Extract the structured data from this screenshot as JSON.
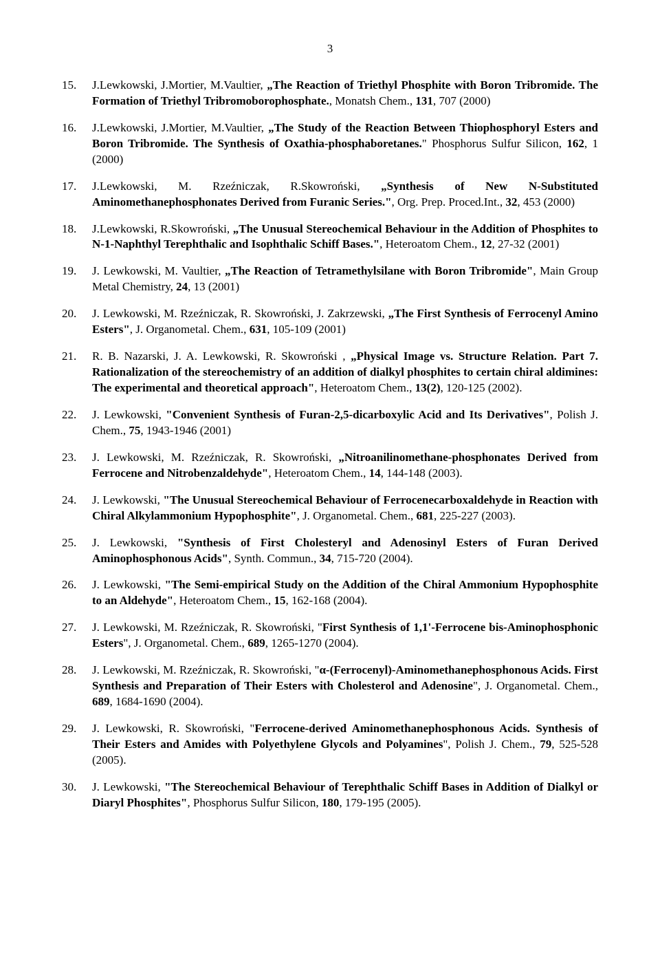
{
  "pageNumber": "3",
  "items": [
    {
      "n": "15.",
      "html": "J.Lewkowski, J.Mortier, M.Vaultier, <b>„The Reaction of Triethyl Phosphite with Boron Tribromide. The Formation of Triethyl Tribromoborophosphate.</b>, Monatsh Chem., <b>131</b>, 707 (2000)"
    },
    {
      "n": "16.",
      "html": "J.Lewkowski, J.Mortier, M.Vaultier, <b>„The Study of the Reaction Between Thiophosphoryl Esters and Boron Tribromide. The Synthesis of Oxathia-phosphaboretanes.</b>\" Phosphorus Sulfur Silicon, <b>162</b>, 1 (2000)"
    },
    {
      "n": "17.",
      "html": "J.Lewkowski, M. Rzeźniczak, R.Skowroński, <b>„Synthesis of New N-Substituted Aminomethanephosphonates Derived from Furanic Series.\"</b>, Org. Prep. Proced.Int., <b>32</b>, 453 (2000)"
    },
    {
      "n": "18.",
      "html": "J.Lewkowski, R.Skowroński, <b>„The Unusual Stereochemical Behaviour in the Addition of Phosphites to N-1-Naphthyl Terephthalic and Isophthalic Schiff Bases.\"</b>, Heteroatom Chem., <b>12</b>, 27-32 (2001)"
    },
    {
      "n": "19.",
      "html": "J. Lewkowski, M. Vaultier, <b>„The Reaction of Tetramethylsilane with Boron Tribromide\"</b>, Main Group Metal Chemistry, <b>24</b>, 13 (2001)"
    },
    {
      "n": "20.",
      "html": "J. Lewkowski, M. Rzeźniczak, R. Skowroński, J. Zakrzewski, <b>„The First Synthesis of Ferrocenyl Amino Esters\"</b>, J. Organometal. Chem., <b>631</b>, 105-109 (2001)"
    },
    {
      "n": "21.",
      "html": "R. B. Nazarski, J. A. Lewkowski, R. Skowroński , <b>„Physical Image vs. Structure Relation. Part 7. Rationalization of the stereochemistry of an addition of dialkyl phosphites to certain chiral aldimines: The experimental and theoretical approach\"</b>, Heteroatom Chem., <b>13(2)</b>, 120-125 (2002)."
    },
    {
      "n": "22.",
      "html": "J. Lewkowski, <b>\"Convenient Synthesis of Furan-2,5-dicarboxylic Acid and Its Derivatives\"</b>, Polish J. Chem., <b>75</b>, 1943-1946 (2001)"
    },
    {
      "n": "23.",
      "html": "J. Lewkowski, M. Rzeźniczak, R. Skowroński, <b>„Nitroanilinomethane-phosphonates Derived from Ferrocene and Nitrobenzaldehyde\"</b>, Heteroatom Chem., <b>14</b>, 144-148 (2003)."
    },
    {
      "n": "24.",
      "html": "J. Lewkowski, <b>\"The Unusual Stereochemical Behaviour of Ferrocenecarboxaldehyde in Reaction with Chiral Alkylammonium Hypophosphite\"</b>, J. Organometal. Chem., <b>681</b>, 225-227 (2003)."
    },
    {
      "n": "25.",
      "html": "J. Lewkowski, <b>\"Synthesis of First Cholesteryl and Adenosinyl Esters of Furan Derived Aminophosphonous Acids\"</b>, Synth. Commun., <b>34</b>, 715-720 (2004)."
    },
    {
      "n": "26.",
      "html": "J. Lewkowski, <b>\"The Semi-empirical Study on the Addition of the Chiral Ammonium Hypophosphite to an Aldehyde\"</b>, Heteroatom Chem., <b>15</b>, 162-168 (2004)."
    },
    {
      "n": "27.",
      "html": "J. Lewkowski, M. Rzeźniczak, R. Skowroński, \"<b>First Synthesis of 1,1'-Ferrocene bis-Aminophosphonic Esters</b>\", J. Organometal. Chem., <b>689</b>, 1265-1270 (2004)."
    },
    {
      "n": "28.",
      "html": "J. Lewkowski, M. Rzeźniczak, R. Skowroński, \"<b>α-(Ferrocenyl)-Aminomethanephosphonous Acids. First Synthesis and Preparation of Their Esters with Cholesterol and Adenosine</b>\", J. Organometal. Chem., <b>689</b>, 1684-1690 (2004)."
    },
    {
      "n": "29.",
      "html": "J. Lewkowski, R. Skowroński, \"<b>Ferrocene-derived Aminomethanephosphonous Acids. Synthesis of Their Esters and Amides with Polyethylene Glycols and Polyamines</b>\", Polish J. Chem., <b>79</b>, 525-528 (2005)."
    },
    {
      "n": "30.",
      "html": "J. Lewkowski, <b>\"The Stereochemical Behaviour of Terephthalic Schiff Bases in Addition of Dialkyl or Diaryl Phosphites\"</b>, Phosphorus Sulfur Silicon, <b>180</b>, 179-195 (2005)."
    }
  ]
}
